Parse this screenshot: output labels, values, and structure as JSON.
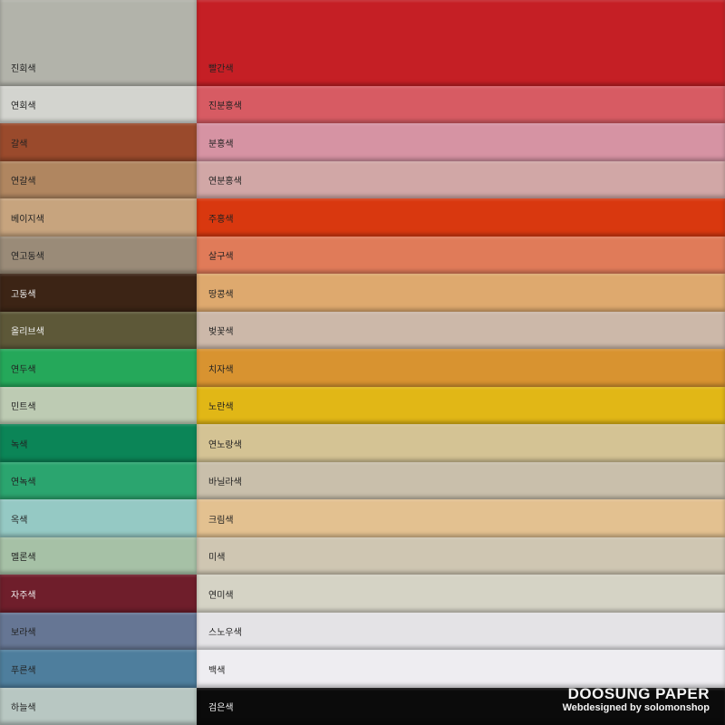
{
  "left_swatches": [
    {
      "label": "진회색",
      "color": "#b2b3aa",
      "text": "#222"
    },
    {
      "label": "연회색",
      "color": "#d3d4cf",
      "text": "#222"
    },
    {
      "label": "갈색",
      "color": "#9a4a2c",
      "text": "#222"
    },
    {
      "label": "연갈색",
      "color": "#b08660",
      "text": "#222"
    },
    {
      "label": "베이지색",
      "color": "#c7a47e",
      "text": "#222"
    },
    {
      "label": "연고동색",
      "color": "#9a8b78",
      "text": "#222"
    },
    {
      "label": "고동색",
      "color": "#3c2415",
      "text": "#f0f0f0"
    },
    {
      "label": "올리브색",
      "color": "#5d5838",
      "text": "#f0f0f0"
    },
    {
      "label": "연두색",
      "color": "#25a85a",
      "text": "#222"
    },
    {
      "label": "민트색",
      "color": "#bdcbb3",
      "text": "#222"
    },
    {
      "label": "녹색",
      "color": "#0b8557",
      "text": "#222"
    },
    {
      "label": "연녹색",
      "color": "#2ba56f",
      "text": "#222"
    },
    {
      "label": "옥색",
      "color": "#95c9c4",
      "text": "#222"
    },
    {
      "label": "멜론색",
      "color": "#a6c1a6",
      "text": "#222"
    },
    {
      "label": "자주색",
      "color": "#6f1e2b",
      "text": "#f0f0f0"
    },
    {
      "label": "보라색",
      "color": "#667694",
      "text": "#222"
    },
    {
      "label": "푸른색",
      "color": "#4e7e9d",
      "text": "#222"
    },
    {
      "label": "하늘색",
      "color": "#b8c7c2",
      "text": "#222"
    }
  ],
  "right_swatches": [
    {
      "label": "빨간색",
      "color": "#c51f25",
      "text": "#222"
    },
    {
      "label": "진분홍색",
      "color": "#d75b63",
      "text": "#222"
    },
    {
      "label": "분홍색",
      "color": "#d693a3",
      "text": "#222"
    },
    {
      "label": "연분홍색",
      "color": "#d1a7a6",
      "text": "#222"
    },
    {
      "label": "주홍색",
      "color": "#d9380f",
      "text": "#222"
    },
    {
      "label": "살구색",
      "color": "#e07b59",
      "text": "#222"
    },
    {
      "label": "땅콩색",
      "color": "#dea96e",
      "text": "#222"
    },
    {
      "label": "벚꽃색",
      "color": "#ccb8a9",
      "text": "#222"
    },
    {
      "label": "치자색",
      "color": "#d89330",
      "text": "#222"
    },
    {
      "label": "노란색",
      "color": "#e1b716",
      "text": "#222"
    },
    {
      "label": "연노랑색",
      "color": "#d4c394",
      "text": "#222"
    },
    {
      "label": "바닐라색",
      "color": "#c9bfab",
      "text": "#222"
    },
    {
      "label": "크림색",
      "color": "#e3c190",
      "text": "#222"
    },
    {
      "label": "미색",
      "color": "#cfc6b2",
      "text": "#222"
    },
    {
      "label": "연미색",
      "color": "#d5d3c5",
      "text": "#222"
    },
    {
      "label": "스노우색",
      "color": "#e4e3e6",
      "text": "#222"
    },
    {
      "label": "백색",
      "color": "#eeedf1",
      "text": "#222"
    },
    {
      "label": "검은색",
      "color": "#0b0b0b",
      "text": "#f0f0f0"
    }
  ],
  "brand": {
    "title": "DOOSUNG PAPER",
    "subtitle": "Webdesigned by solomonshop"
  }
}
